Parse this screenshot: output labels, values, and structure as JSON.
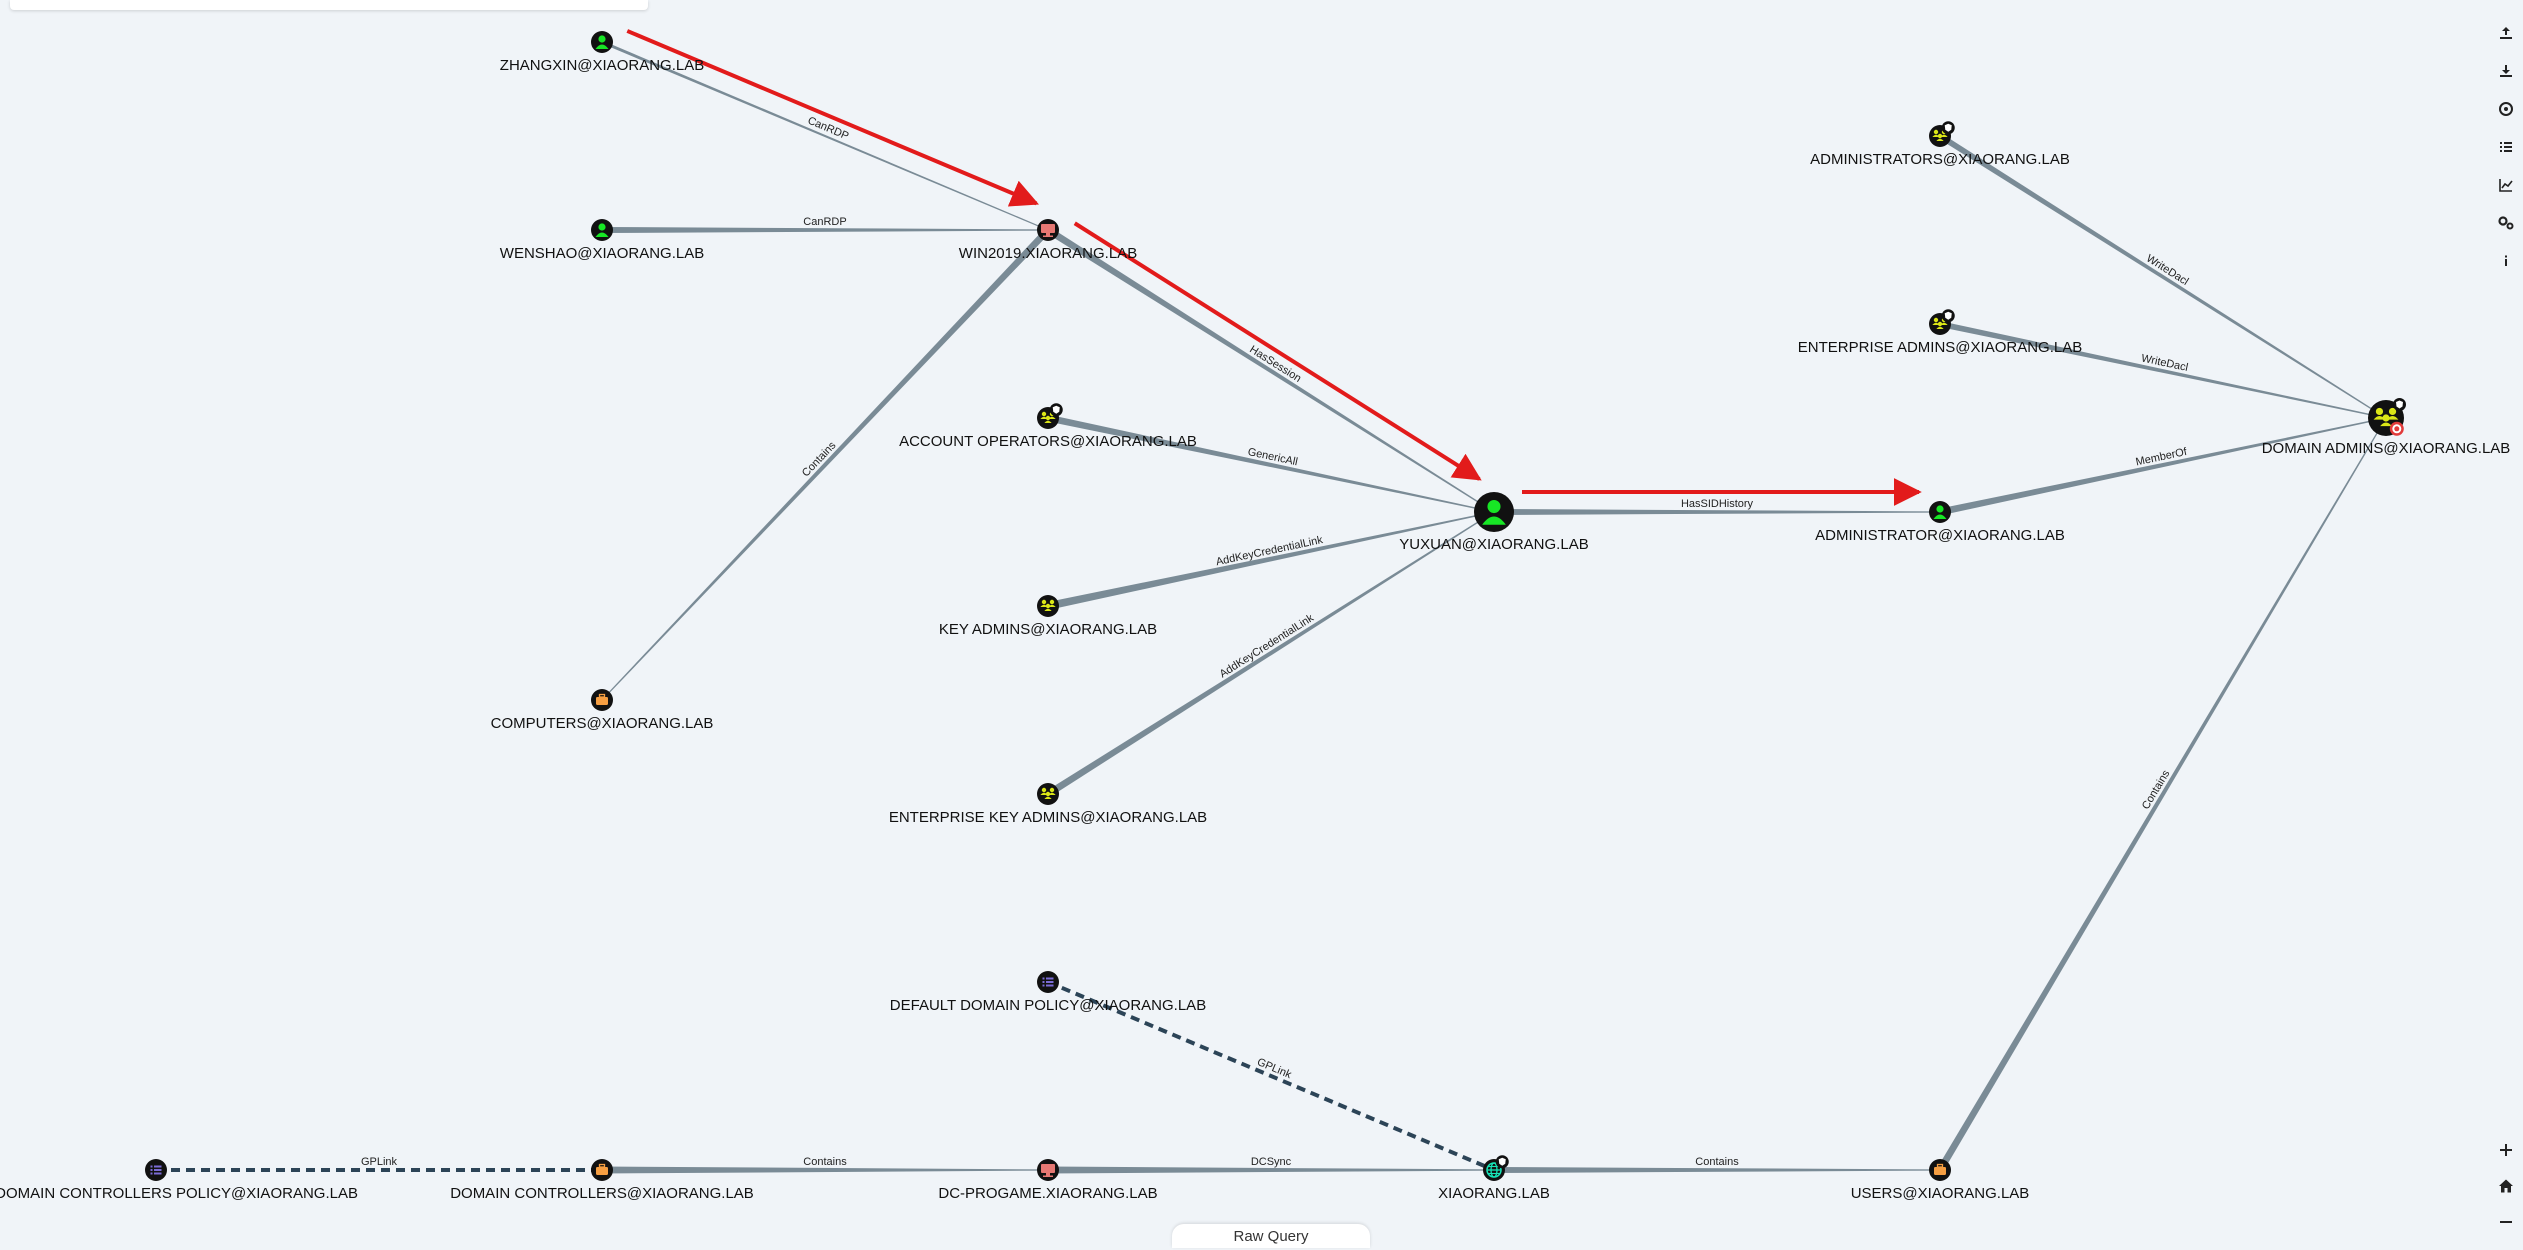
{
  "graph": {
    "nodes": [
      {
        "id": "zhangxin",
        "label": "ZHANGXIN@XIAORANG.LAB",
        "type": "user"
      },
      {
        "id": "wenshao",
        "label": "WENSHAO@XIAORANG.LAB",
        "type": "user"
      },
      {
        "id": "win2019",
        "label": "WIN2019.XIAORANG.LAB",
        "type": "computer"
      },
      {
        "id": "computers",
        "label": "COMPUTERS@XIAORANG.LAB",
        "type": "ou"
      },
      {
        "id": "acctops",
        "label": "ACCOUNT OPERATORS@XIAORANG.LAB",
        "type": "group"
      },
      {
        "id": "keyadmins",
        "label": "KEY ADMINS@XIAORANG.LAB",
        "type": "group"
      },
      {
        "id": "entkeyadmins",
        "label": "ENTERPRISE KEY ADMINS@XIAORANG.LAB",
        "type": "group"
      },
      {
        "id": "yuxuan",
        "label": "YUXUAN@XIAORANG.LAB",
        "type": "user"
      },
      {
        "id": "administrators",
        "label": "ADMINISTRATORS@XIAORANG.LAB",
        "type": "group"
      },
      {
        "id": "entadmins",
        "label": "ENTERPRISE ADMINS@XIAORANG.LAB",
        "type": "group"
      },
      {
        "id": "administrator",
        "label": "ADMINISTRATOR@XIAORANG.LAB",
        "type": "user"
      },
      {
        "id": "domainadmins",
        "label": "DOMAIN ADMINS@XIAORANG.LAB",
        "type": "group"
      },
      {
        "id": "ddp",
        "label": "DEFAULT DOMAIN POLICY@XIAORANG.LAB",
        "type": "gpo"
      },
      {
        "id": "ddcp",
        "label": "AULT DOMAIN CONTROLLERS POLICY@XIAORANG.LAB",
        "type": "gpo"
      },
      {
        "id": "dcs",
        "label": "DOMAIN CONTROLLERS@XIAORANG.LAB",
        "type": "ou"
      },
      {
        "id": "dcprogame",
        "label": "DC-PROGAME.XIAORANG.LAB",
        "type": "computer"
      },
      {
        "id": "domain",
        "label": "XIAORANG.LAB",
        "type": "domain"
      },
      {
        "id": "users",
        "label": "USERS@XIAORANG.LAB",
        "type": "ou"
      }
    ],
    "edges": [
      {
        "from": "zhangxin",
        "to": "win2019",
        "label": "CanRDP",
        "path": true
      },
      {
        "from": "wenshao",
        "to": "win2019",
        "label": "CanRDP"
      },
      {
        "from": "win2019",
        "to": "computers",
        "label": "Contains"
      },
      {
        "from": "win2019",
        "to": "yuxuan",
        "label": "HasSession",
        "path": true
      },
      {
        "from": "acctops",
        "to": "yuxuan",
        "label": "GenericAll"
      },
      {
        "from": "keyadmins",
        "to": "yuxuan",
        "label": "AddKeyCredentialLink"
      },
      {
        "from": "entkeyadmins",
        "to": "yuxuan",
        "label": "AddKeyCredentialLink"
      },
      {
        "from": "yuxuan",
        "to": "administrator",
        "label": "HasSIDHistory",
        "path": true
      },
      {
        "from": "administrator",
        "to": "domainadmins",
        "label": "MemberOf"
      },
      {
        "from": "administrators",
        "to": "domainadmins",
        "label": "WriteDacl"
      },
      {
        "from": "entadmins",
        "to": "domainadmins",
        "label": "WriteDacl"
      },
      {
        "from": "users",
        "to": "domainadmins",
        "label": "Contains"
      },
      {
        "from": "ddp",
        "to": "domain",
        "label": "GPLink",
        "dashed": true
      },
      {
        "from": "ddcp",
        "to": "dcs",
        "label": "GPLink",
        "dashed": true
      },
      {
        "from": "dcs",
        "to": "dcprogame",
        "label": "Contains"
      },
      {
        "from": "dcprogame",
        "to": "domain",
        "label": "DCSync"
      },
      {
        "from": "domain",
        "to": "users",
        "label": "Contains"
      }
    ]
  },
  "colors": {
    "user": "#17e625",
    "computer": "#e67873",
    "group": "#dbe617",
    "ou": "#f59e42",
    "gpo": "#7b6cd6",
    "domain": "#17e6b9",
    "edge": "#7a8b96",
    "path": "#e21b1b",
    "label": "#111111"
  },
  "toolbar": {
    "icons": [
      "upload-icon",
      "download-icon",
      "target-icon",
      "list-icon",
      "chart-icon",
      "settings-icon",
      "info-icon"
    ],
    "zoom": [
      "zoom-in-icon",
      "home-icon",
      "zoom-out-icon"
    ]
  },
  "raw_query": {
    "label": "Raw Query"
  }
}
